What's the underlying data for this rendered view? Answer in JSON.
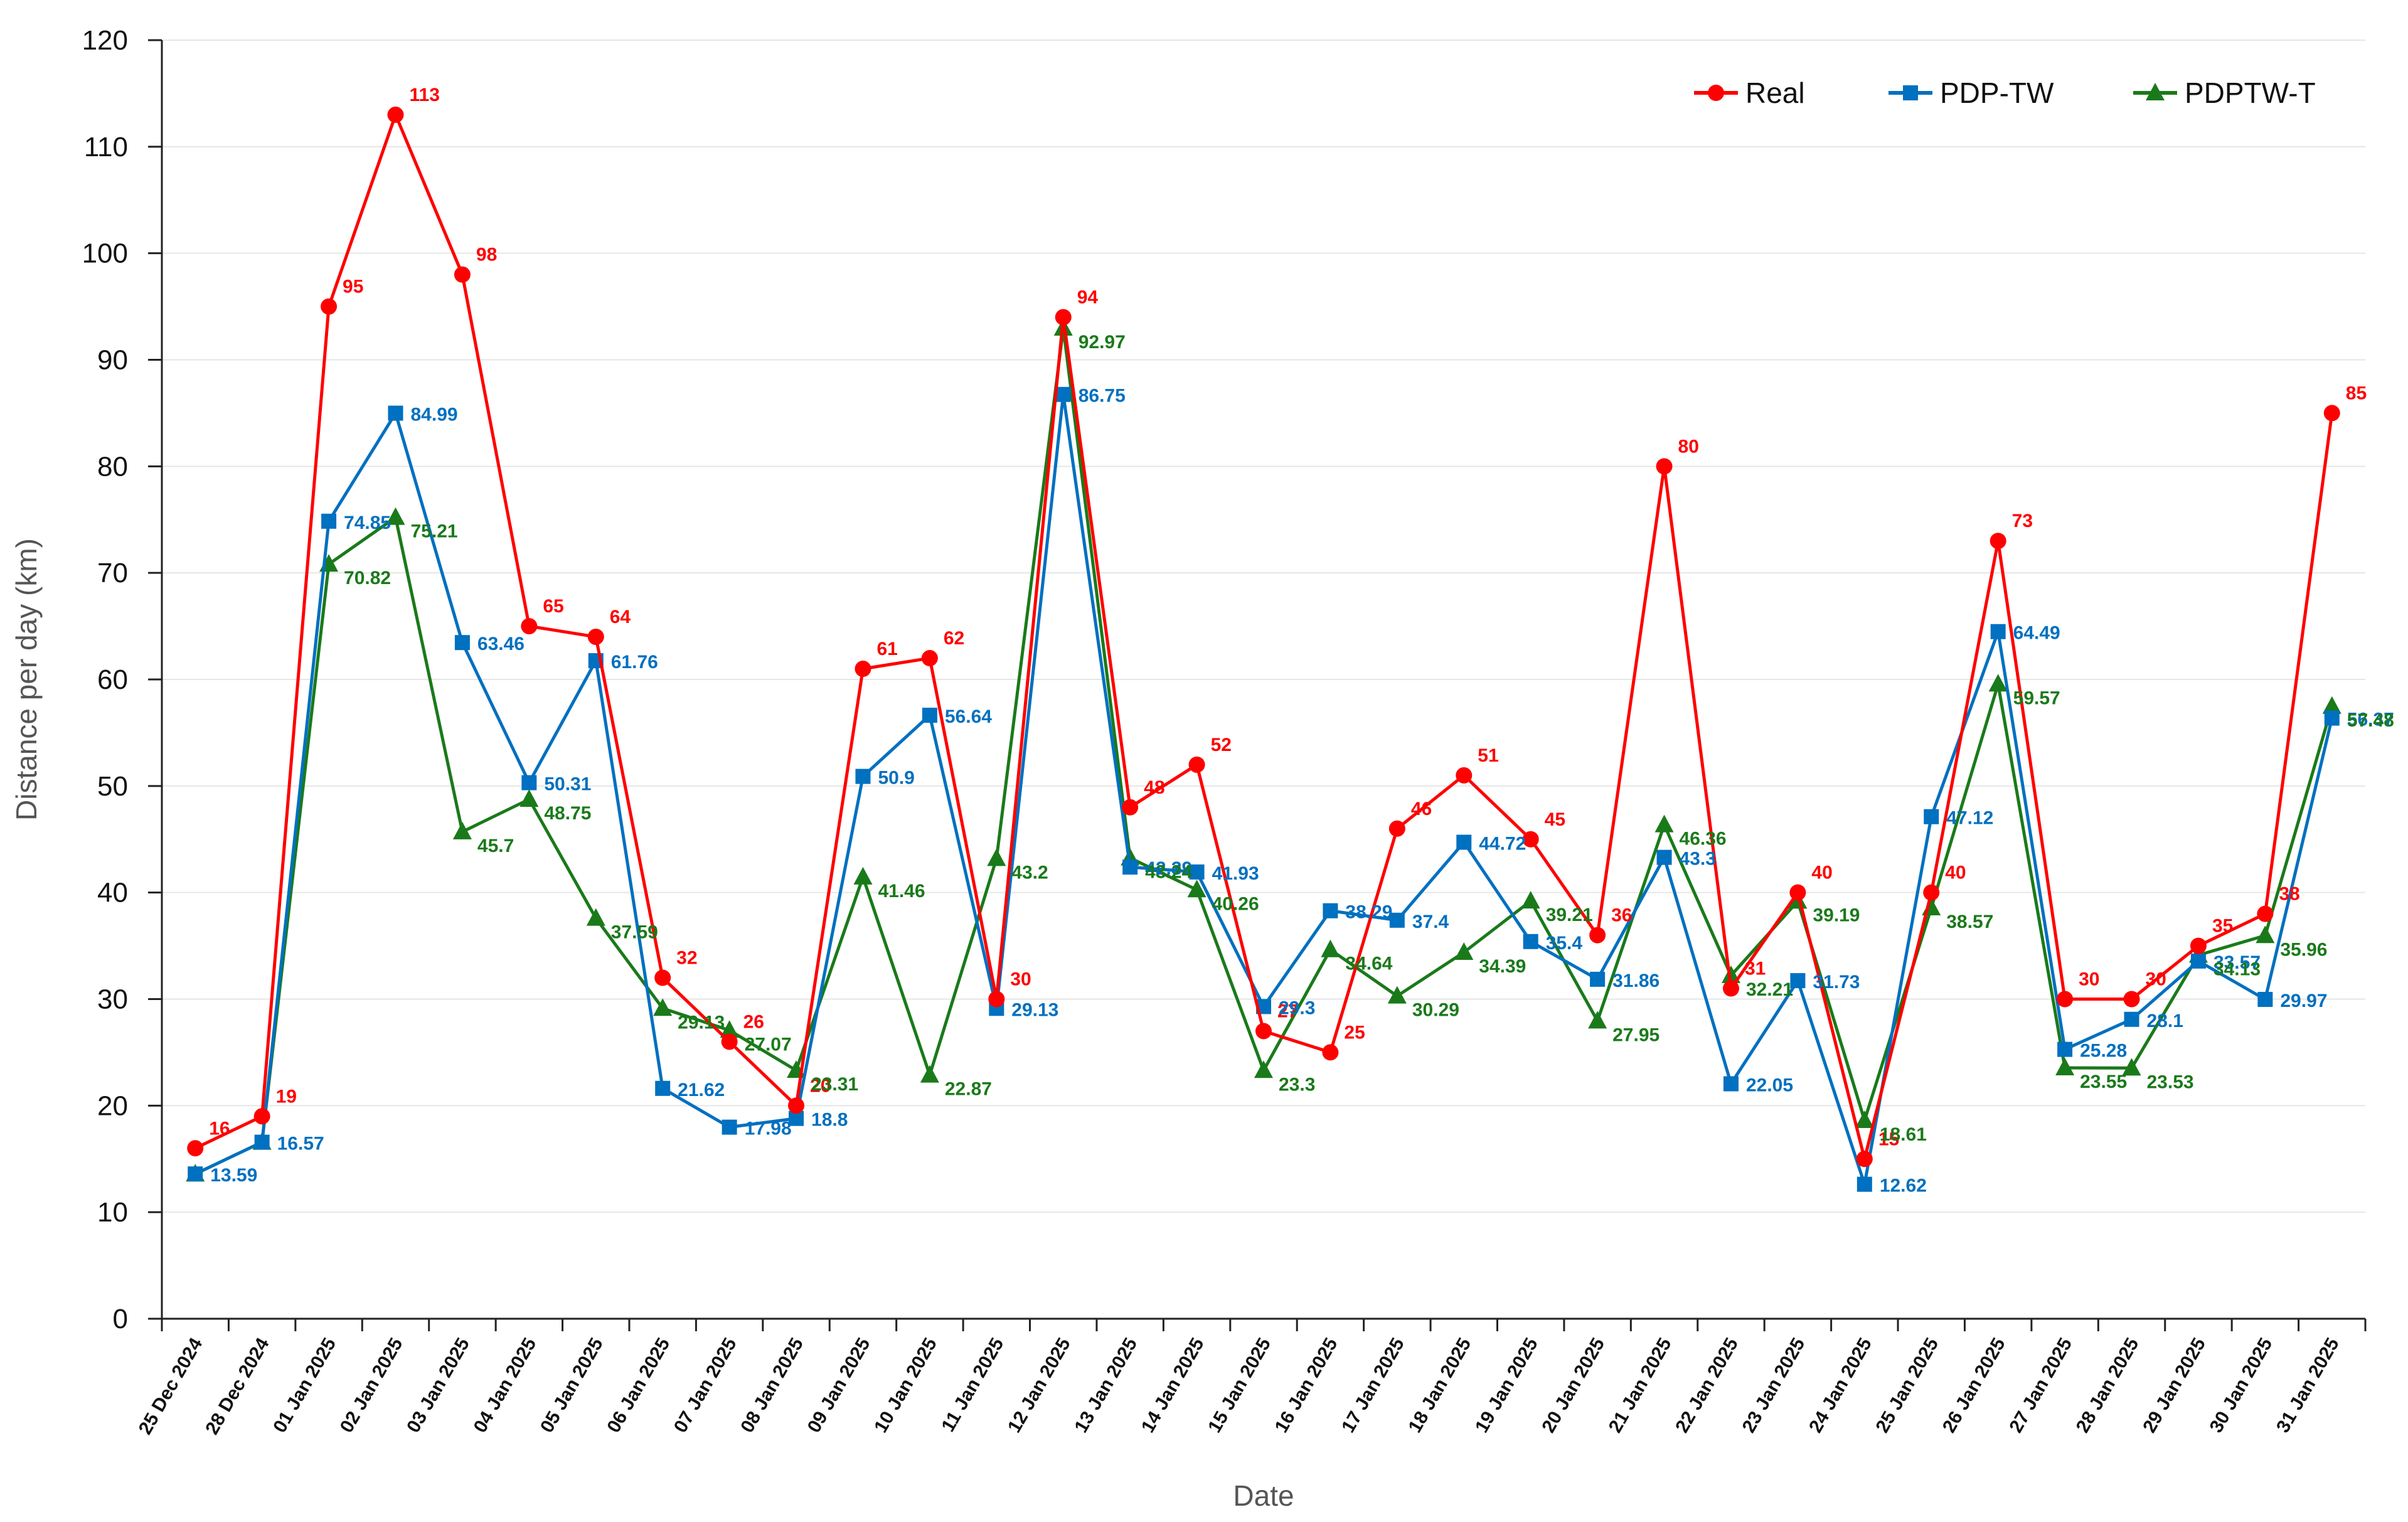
{
  "chart_data": {
    "type": "line",
    "title": "",
    "xlabel": "Date",
    "ylabel": "Distance per day (km)",
    "ylim": [
      0,
      120
    ],
    "ytick_step": 10,
    "yticks": [
      "0",
      "10",
      "20",
      "30",
      "40",
      "50",
      "60",
      "70",
      "80",
      "90",
      "100",
      "110",
      "120"
    ],
    "grid": true,
    "legend_position": "top-right",
    "categories": [
      "25 Dec 2024",
      "28 Dec 2024",
      "01 Jan 2025",
      "02 Jan 2025",
      "03 Jan 2025",
      "04 Jan 2025",
      "05 Jan 2025",
      "06 Jan 2025",
      "07 Jan 2025",
      "08 Jan 2025",
      "09 Jan 2025",
      "10 Jan 2025",
      "11 Jan 2025",
      "12 Jan 2025",
      "13 Jan 2025",
      "14 Jan 2025",
      "15 Jan 2025",
      "16 Jan 2025",
      "17 Jan 2025",
      "18 Jan 2025",
      "19 Jan 2025",
      "20 Jan 2025",
      "21 Jan 2025",
      "22 Jan 2025",
      "23 Jan 2025",
      "24 Jan 2025",
      "25 Jan 2025",
      "26 Jan 2025",
      "27 Jan 2025",
      "28 Jan 2025",
      "29 Jan 2025",
      "30 Jan 2025",
      "31 Jan 2025"
    ],
    "series": [
      {
        "name": "Real",
        "color": "#ff0000",
        "marker": "circle",
        "values": [
          16,
          19,
          95,
          113,
          98,
          65,
          64,
          32,
          26,
          20,
          61,
          62,
          30,
          94,
          48,
          52,
          27,
          25,
          46,
          51,
          45,
          36,
          80,
          31,
          40,
          15,
          40,
          73,
          30,
          30,
          35,
          38,
          85
        ],
        "labels": [
          "16",
          "19",
          "95",
          "113",
          "98",
          "65",
          "64",
          "32",
          "26",
          "20",
          "61",
          "62",
          "30",
          "94",
          "48",
          "52",
          "27",
          "25",
          "46",
          "51",
          "45",
          "36",
          "80",
          "31",
          "40",
          "15",
          "40",
          "73",
          "30",
          "30",
          "35",
          "38",
          "85"
        ]
      },
      {
        "name": "PDP-TW",
        "color": "#0070c0",
        "marker": "square",
        "values": [
          13.59,
          16.57,
          74.85,
          84.99,
          63.46,
          50.31,
          61.76,
          21.62,
          17.98,
          18.8,
          50.9,
          56.64,
          29.13,
          86.75,
          42.39,
          41.93,
          29.3,
          38.29,
          37.4,
          44.72,
          35.4,
          31.86,
          43.3,
          22.05,
          31.73,
          12.62,
          47.12,
          64.49,
          25.28,
          28.1,
          33.57,
          29.97,
          56.37
        ],
        "labels": [
          "13.59",
          "16.57",
          "74.85",
          "84.99",
          "63.46",
          "50.31",
          "61.76",
          "21.62",
          "17.98",
          "18.8",
          "50.9",
          "56.64",
          "29.13",
          "86.75",
          "42.39",
          "41.93",
          "29.3",
          "38.29",
          "37.4",
          "44.72",
          "35.4",
          "31.86",
          "43.3",
          "22.05",
          "31.73",
          "12.62",
          "47.12",
          "64.49",
          "25.28",
          "28.1",
          "33.57",
          "29.97",
          "56.37"
        ]
      },
      {
        "name": "PDPTW-T",
        "color": "#1a7a1a",
        "marker": "triangle",
        "values": [
          13.59,
          16.57,
          70.82,
          75.21,
          45.7,
          48.75,
          37.59,
          29.13,
          27.07,
          23.31,
          41.46,
          22.87,
          43.2,
          92.97,
          43.24,
          40.26,
          23.3,
          34.64,
          30.29,
          34.39,
          39.21,
          27.95,
          46.36,
          32.21,
          39.19,
          18.61,
          38.57,
          59.57,
          23.55,
          23.53,
          34.13,
          35.96,
          57.48
        ],
        "labels": [
          "",
          "",
          "70.82",
          "75.21",
          "45.7",
          "48.75",
          "37.59",
          "29.13",
          "27.07",
          "23.31",
          "41.46",
          "22.87",
          "43.2",
          "92.97",
          "43.24",
          "40.26",
          "23.3",
          "34.64",
          "30.29",
          "34.39",
          "39.21",
          "27.95",
          "46.36",
          "32.21",
          "39.19",
          "18.61",
          "38.57",
          "59.57",
          "23.55",
          "23.53",
          "34.13",
          "35.96",
          "57.48"
        ]
      }
    ]
  }
}
